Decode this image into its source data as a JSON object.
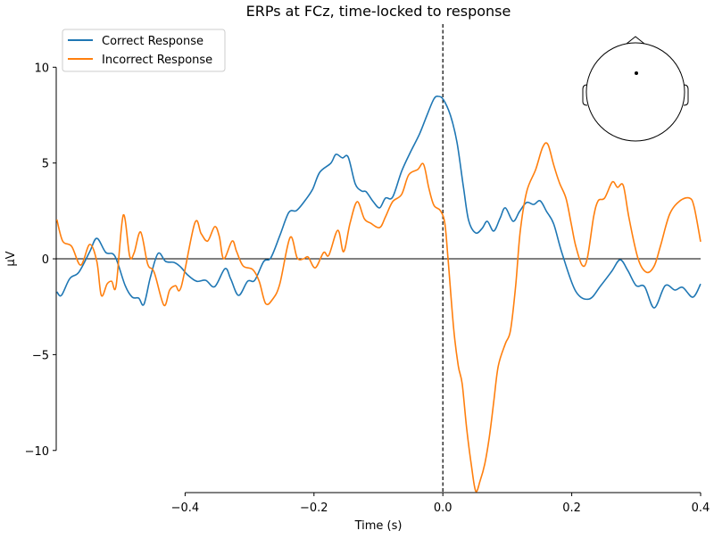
{
  "chart_data": {
    "type": "line",
    "title": "ERPs at FCz, time-locked to response",
    "xlabel": "Time (s)",
    "ylabel": "µV",
    "xlim": [
      -0.6,
      0.4
    ],
    "ylim": [
      -12.2,
      12.25
    ],
    "xticks": [
      -0.4,
      -0.2,
      0.0,
      0.2,
      0.4
    ],
    "xtick_labels": [
      "−0.4",
      "−0.2",
      "0.0",
      "0.2",
      "0.4"
    ],
    "yticks": [
      -10,
      -5,
      0,
      5,
      10
    ],
    "ytick_labels": [
      "−10",
      "−5",
      "0",
      "5",
      "10"
    ],
    "grid": false,
    "legend_placement": "top-left",
    "zero_line": true,
    "event_line_x": 0.0,
    "inset": "head-sensor-map",
    "series": [
      {
        "name": "Correct Response",
        "color": "#1f77b4",
        "x": [
          -0.599,
          -0.592,
          -0.579,
          -0.565,
          -0.548,
          -0.537,
          -0.523,
          -0.509,
          -0.493,
          -0.482,
          -0.472,
          -0.464,
          -0.454,
          -0.442,
          -0.43,
          -0.417,
          -0.407,
          -0.396,
          -0.382,
          -0.368,
          -0.354,
          -0.338,
          -0.329,
          -0.317,
          -0.303,
          -0.292,
          -0.278,
          -0.267,
          -0.253,
          -0.239,
          -0.227,
          -0.213,
          -0.202,
          -0.191,
          -0.174,
          -0.166,
          -0.156,
          -0.147,
          -0.136,
          -0.126,
          -0.119,
          -0.108,
          -0.098,
          -0.089,
          -0.078,
          -0.064,
          -0.05,
          -0.036,
          -0.025,
          -0.014,
          -0.007,
          0.001,
          0.012,
          0.022,
          0.032,
          0.04,
          0.051,
          0.061,
          0.069,
          0.079,
          0.089,
          0.097,
          0.109,
          0.119,
          0.13,
          0.141,
          0.151,
          0.161,
          0.172,
          0.185,
          0.206,
          0.227,
          0.245,
          0.262,
          0.275,
          0.287,
          0.3,
          0.313,
          0.328,
          0.345,
          0.36,
          0.372,
          0.388,
          0.4
        ],
        "y": [
          -1.72,
          -1.91,
          -1.03,
          -0.7,
          0.37,
          1.07,
          0.33,
          0.14,
          -1.4,
          -2.0,
          -2.05,
          -2.38,
          -0.98,
          0.28,
          -0.14,
          -0.19,
          -0.42,
          -0.84,
          -1.17,
          -1.12,
          -1.45,
          -0.51,
          -1.07,
          -1.91,
          -1.17,
          -1.12,
          -0.14,
          0.05,
          1.21,
          2.42,
          2.52,
          3.08,
          3.64,
          4.52,
          4.99,
          5.45,
          5.27,
          5.31,
          3.92,
          3.54,
          3.5,
          2.98,
          2.66,
          3.17,
          3.22,
          4.57,
          5.59,
          6.53,
          7.46,
          8.34,
          8.48,
          8.3,
          7.46,
          6.06,
          3.73,
          2.0,
          1.35,
          1.59,
          1.96,
          1.45,
          2.14,
          2.66,
          1.96,
          2.47,
          2.94,
          2.84,
          3.03,
          2.47,
          1.82,
          0.28,
          -1.68,
          -2.1,
          -1.4,
          -0.65,
          -0.05,
          -0.61,
          -1.4,
          -1.45,
          -2.56,
          -1.4,
          -1.63,
          -1.49,
          -2.0,
          -1.31
        ]
      },
      {
        "name": "Incorrect Response",
        "color": "#ff7f0e",
        "x": [
          -0.599,
          -0.59,
          -0.576,
          -0.562,
          -0.548,
          -0.537,
          -0.53,
          -0.521,
          -0.514,
          -0.507,
          -0.496,
          -0.486,
          -0.479,
          -0.469,
          -0.458,
          -0.448,
          -0.433,
          -0.424,
          -0.415,
          -0.406,
          -0.385,
          -0.375,
          -0.365,
          -0.354,
          -0.347,
          -0.34,
          -0.327,
          -0.32,
          -0.31,
          -0.295,
          -0.285,
          -0.275,
          -0.264,
          -0.253,
          -0.237,
          -0.226,
          -0.216,
          -0.209,
          -0.198,
          -0.185,
          -0.177,
          -0.163,
          -0.154,
          -0.144,
          -0.133,
          -0.122,
          -0.112,
          -0.098,
          -0.089,
          -0.078,
          -0.064,
          -0.053,
          -0.039,
          -0.03,
          -0.022,
          -0.014,
          -0.004,
          0.003,
          0.008,
          0.017,
          0.024,
          0.03,
          0.037,
          0.044,
          0.051,
          0.058,
          0.065,
          0.072,
          0.079,
          0.086,
          0.097,
          0.105,
          0.113,
          0.12,
          0.13,
          0.144,
          0.155,
          0.163,
          0.172,
          0.181,
          0.191,
          0.199,
          0.206,
          0.216,
          0.224,
          0.234,
          0.241,
          0.251,
          0.263,
          0.271,
          0.28,
          0.289,
          0.303,
          0.316,
          0.328,
          0.338,
          0.352,
          0.368,
          0.383,
          0.39,
          0.4
        ],
        "y": [
          2.05,
          0.93,
          0.65,
          -0.33,
          0.75,
          -0.14,
          -1.91,
          -1.31,
          -1.17,
          -1.4,
          2.28,
          0.14,
          0.33,
          1.4,
          -0.28,
          -0.7,
          -2.42,
          -1.63,
          -1.4,
          -1.45,
          1.86,
          1.31,
          0.93,
          1.68,
          1.17,
          0.0,
          0.93,
          0.37,
          -0.37,
          -0.56,
          -1.17,
          -2.33,
          -2.1,
          -1.31,
          1.12,
          0.05,
          0.0,
          0.09,
          -0.47,
          0.33,
          0.19,
          1.49,
          0.37,
          1.86,
          2.98,
          2.1,
          1.86,
          1.63,
          2.19,
          2.98,
          3.36,
          4.38,
          4.66,
          4.94,
          3.73,
          2.8,
          2.52,
          1.86,
          0.0,
          -3.73,
          -5.59,
          -6.53,
          -8.86,
          -10.72,
          -12.12,
          -11.56,
          -10.72,
          -9.32,
          -7.46,
          -5.59,
          -4.43,
          -3.73,
          -1.4,
          1.4,
          3.5,
          4.66,
          5.83,
          5.97,
          4.9,
          3.96,
          3.17,
          1.86,
          0.7,
          -0.33,
          0.0,
          2.19,
          3.03,
          3.17,
          4.01,
          3.73,
          3.82,
          2.1,
          0.0,
          -0.7,
          -0.37,
          0.7,
          2.33,
          3.03,
          3.17,
          2.7,
          0.89
        ]
      }
    ]
  }
}
